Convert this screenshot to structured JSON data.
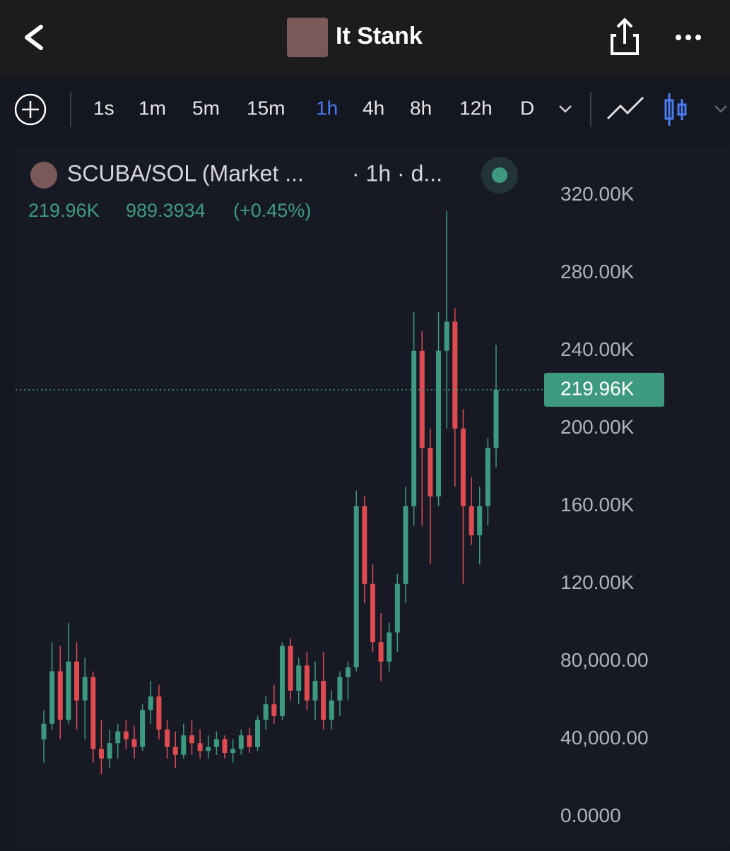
{
  "header": {
    "title": "It Stank"
  },
  "toolbar": {
    "intervals": [
      "1s",
      "1m",
      "5m",
      "15m",
      "1h",
      "4h",
      "8h",
      "12h",
      "D"
    ],
    "active": "1h"
  },
  "legend": {
    "title": "SCUBA/SOL (Market ...",
    "interval": "· 1h · d...",
    "close_label": "219.96K",
    "change": "989.3934",
    "change_pct": "(+0.45%)"
  },
  "chart_data": {
    "type": "candlestick",
    "up_color": "#3e9a7e",
    "down_color": "#e04b52",
    "open": [
      40000,
      48000,
      75000,
      50000,
      80000,
      60000,
      72000,
      35000,
      30000,
      38000,
      44000,
      40000,
      36000,
      55000,
      62000,
      45000,
      36000,
      32000,
      42000,
      38000,
      34000,
      36000,
      40000,
      33000,
      35000,
      42000,
      36000,
      50000,
      58000,
      52000,
      88000,
      65000,
      78000,
      60000,
      70000,
      50000,
      60000,
      72000,
      77000,
      160000,
      120000,
      90000,
      80000,
      95000,
      120000,
      160000,
      240000,
      190000,
      165000,
      240000,
      255000,
      200000,
      160000,
      145000,
      160000,
      190000
    ],
    "high": [
      55000,
      90000,
      88000,
      100000,
      90000,
      82000,
      75000,
      50000,
      45000,
      48000,
      50000,
      47000,
      58000,
      70000,
      68000,
      50000,
      44000,
      48000,
      50000,
      45000,
      42000,
      44000,
      42000,
      40000,
      45000,
      46000,
      52000,
      62000,
      68000,
      90000,
      92000,
      82000,
      85000,
      80000,
      85000,
      65000,
      75000,
      80000,
      168000,
      165000,
      130000,
      105000,
      100000,
      125000,
      170000,
      260000,
      250000,
      200000,
      260000,
      312000,
      262000,
      210000,
      175000,
      170000,
      195000,
      243000
    ],
    "low": [
      28000,
      45000,
      40000,
      48000,
      45000,
      40000,
      28000,
      22000,
      25000,
      30000,
      35000,
      30000,
      34000,
      48000,
      40000,
      30000,
      25000,
      30000,
      32000,
      30000,
      30000,
      32000,
      30000,
      28000,
      32000,
      33000,
      34000,
      45000,
      48000,
      50000,
      60000,
      58000,
      55000,
      50000,
      45000,
      45000,
      52000,
      60000,
      75000,
      110000,
      85000,
      70000,
      75000,
      85000,
      110000,
      150000,
      150000,
      130000,
      160000,
      200000,
      170000,
      120000,
      140000,
      130000,
      150000,
      180000
    ],
    "close": [
      48000,
      75000,
      50000,
      80000,
      60000,
      72000,
      35000,
      30000,
      38000,
      44000,
      40000,
      36000,
      55000,
      62000,
      45000,
      36000,
      32000,
      42000,
      38000,
      34000,
      36000,
      40000,
      33000,
      35000,
      42000,
      36000,
      50000,
      58000,
      52000,
      88000,
      65000,
      78000,
      60000,
      70000,
      50000,
      60000,
      72000,
      77000,
      160000,
      120000,
      90000,
      80000,
      95000,
      120000,
      160000,
      240000,
      190000,
      165000,
      240000,
      255000,
      200000,
      160000,
      145000,
      160000,
      190000,
      219960
    ],
    "ylim": [
      -15000,
      345000
    ],
    "yticks": [
      {
        "value": 0,
        "label": "0.0000"
      },
      {
        "value": 40000,
        "label": "40,000.00"
      },
      {
        "value": 80000,
        "label": "80,000.00"
      },
      {
        "value": 120000,
        "label": "120.00K"
      },
      {
        "value": 160000,
        "label": "160.00K"
      },
      {
        "value": 200000,
        "label": "200.00K"
      },
      {
        "value": 240000,
        "label": "240.00K"
      },
      {
        "value": 280000,
        "label": "280.00K"
      },
      {
        "value": 320000,
        "label": "320.00K"
      }
    ],
    "last_price": {
      "value": 219960,
      "label": "219.96K"
    }
  }
}
